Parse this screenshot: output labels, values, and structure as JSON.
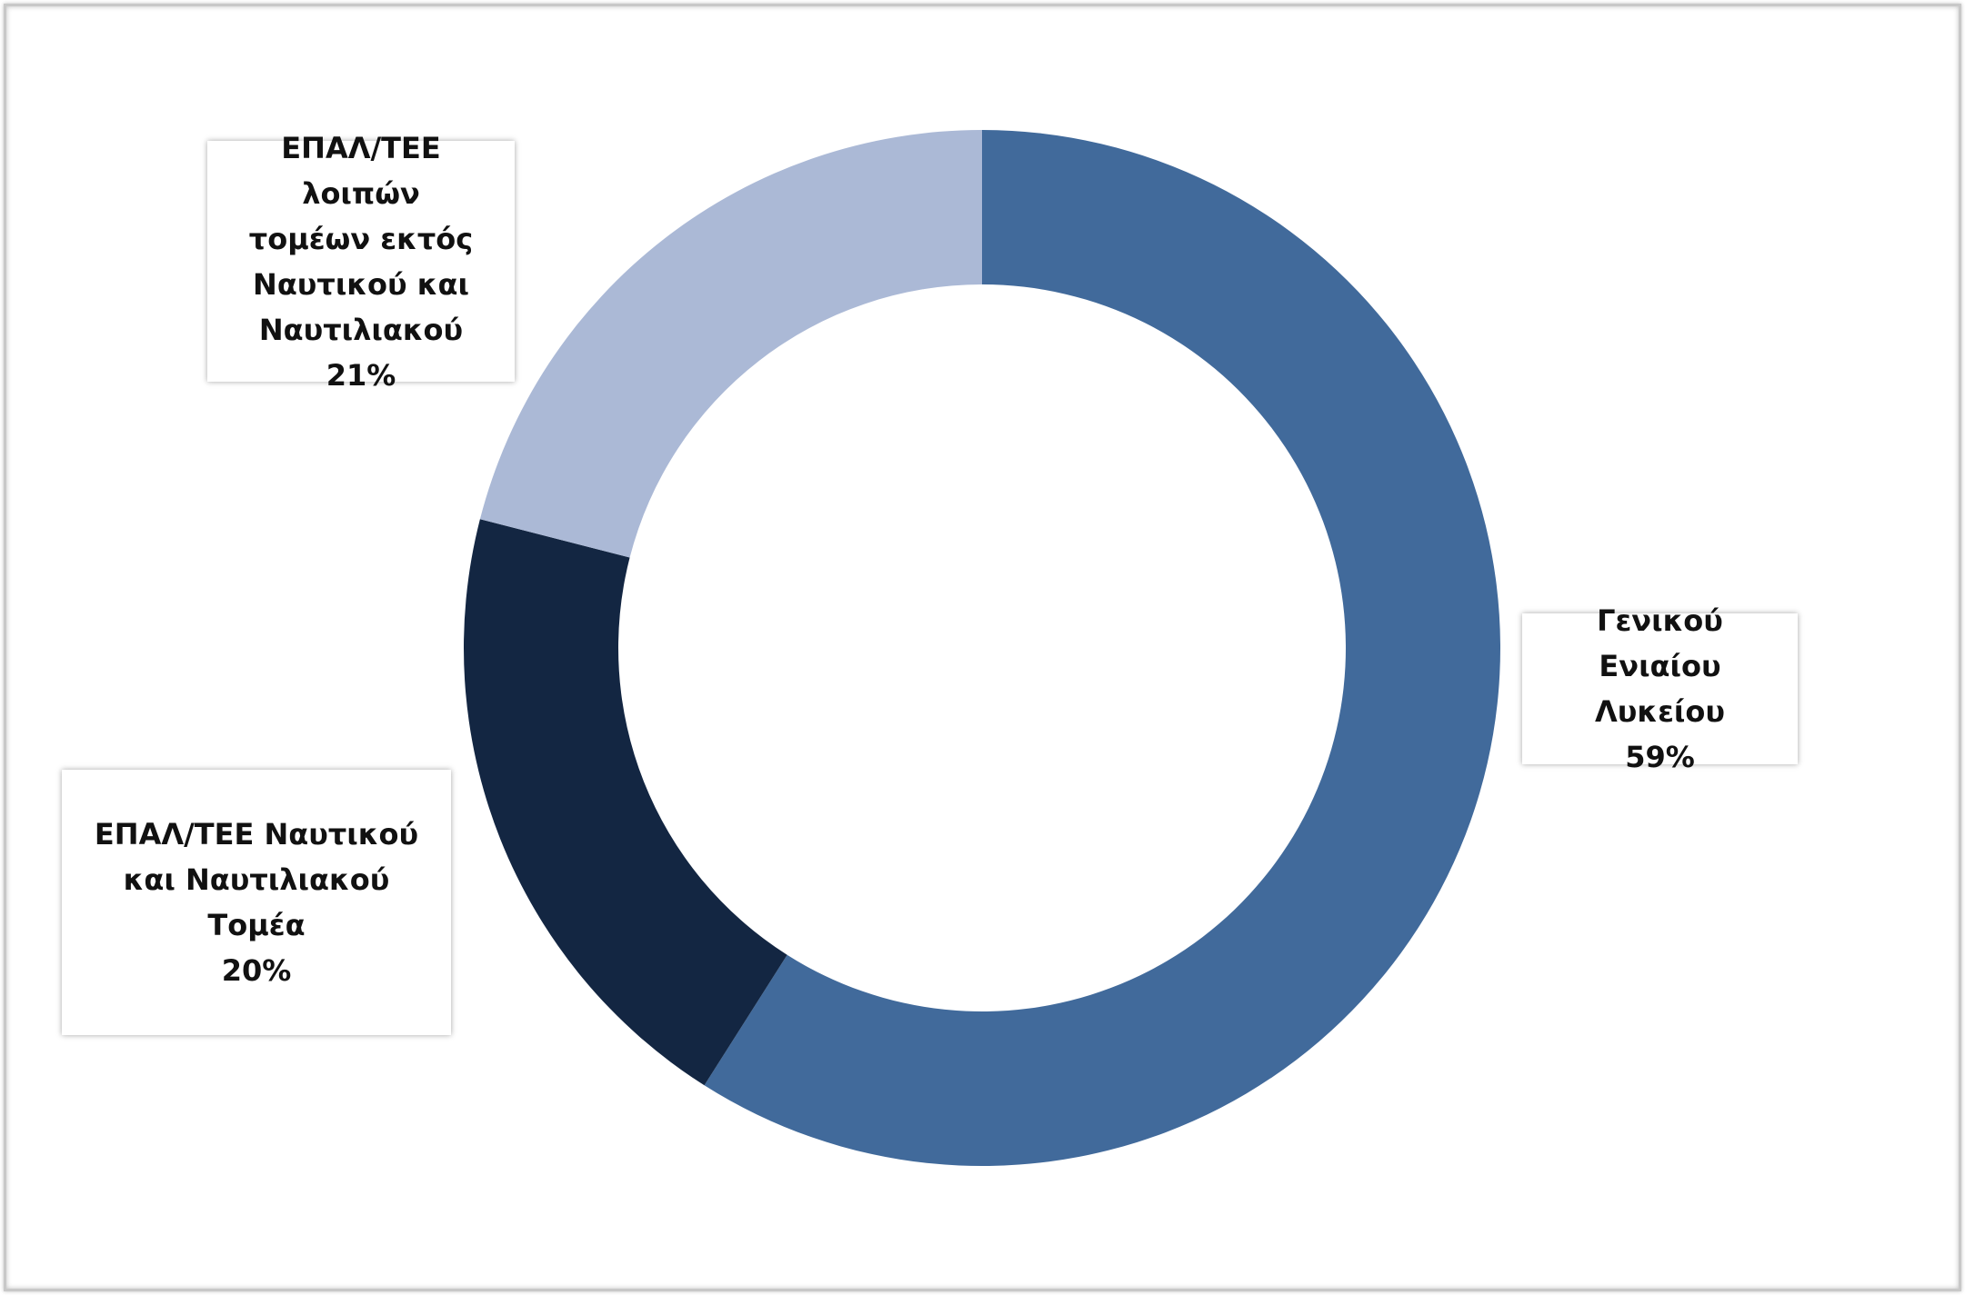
{
  "chart_data": {
    "type": "pie",
    "variant": "donut",
    "title": "",
    "start_angle_deg": 0,
    "direction": "clockwise",
    "slices": [
      {
        "name": "Γενικού Ενιαίου\nΛυκείου",
        "value": 59,
        "value_label": "59%",
        "color": "#416a9b"
      },
      {
        "name": "ΕΠΑΛ/ΤΕΕ Ναυτικού\nκαι Ναυτιλιακού\nΤομέα\n",
        "value": 20,
        "value_label": "20%",
        "color": "#132642"
      },
      {
        "name": "ΕΠΑΛ/ΤΕΕ λοιπών\nτομέων εκτός\nΝαυτικού και\nΝαυτιλιακού",
        "value": 21,
        "value_label": "21%",
        "color": "#abb9d6"
      }
    ],
    "legend": "none",
    "data_labels": "callout-boxes"
  }
}
